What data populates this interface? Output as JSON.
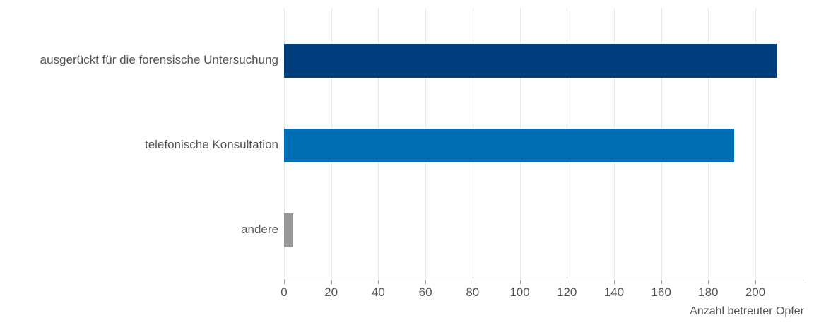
{
  "chart_data": {
    "type": "bar",
    "orientation": "horizontal",
    "categories": [
      "ausgerückt für die forensische Untersuchung",
      "telefonische Konsultation",
      "andere"
    ],
    "values": [
      209,
      191,
      4
    ],
    "colors": [
      "#003f7d",
      "#006eb4",
      "#999999"
    ],
    "xlabel": "Anzahl betreuter Opfer",
    "ylabel": "",
    "xlim": [
      0,
      220
    ],
    "ticks": [
      "0",
      "20",
      "40",
      "60",
      "80",
      "100",
      "120",
      "140",
      "160",
      "180",
      "200"
    ],
    "grid": true
  }
}
